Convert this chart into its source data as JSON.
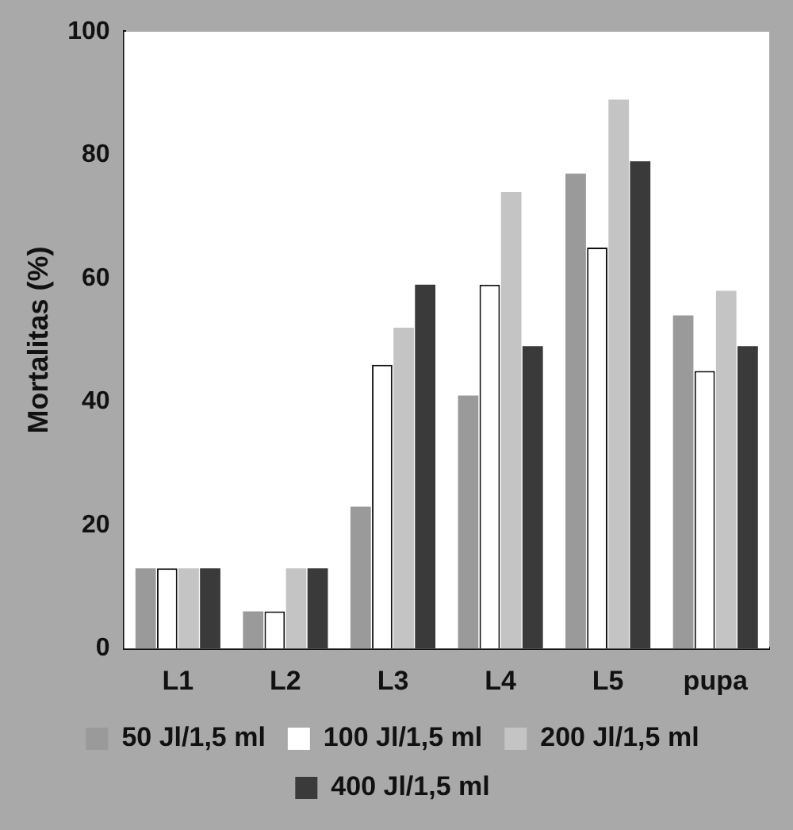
{
  "chart_data": {
    "type": "bar",
    "ylabel": "Mortalitas (%)",
    "categories": [
      "L1",
      "L2",
      "L3",
      "L4",
      "L5",
      "pupa"
    ],
    "series": [
      {
        "name": "50 Jl/1,5 ml",
        "color": "#9a9a9a",
        "values": [
          13,
          6,
          23,
          41,
          77,
          54
        ]
      },
      {
        "name": "100 Jl/1,5 ml",
        "color": "#ffffff",
        "values": [
          13,
          6,
          46,
          59,
          65,
          45
        ]
      },
      {
        "name": "200 Jl/1,5 ml",
        "color": "#c4c4c4",
        "values": [
          13,
          13,
          52,
          74,
          89,
          58
        ]
      },
      {
        "name": "400 Jl/1,5 ml",
        "color": "#3a3a3a",
        "values": [
          13,
          13,
          59,
          49,
          79,
          49
        ]
      }
    ],
    "ylim": [
      0,
      100
    ],
    "yticks": [
      0,
      20,
      40,
      60,
      80,
      100
    ],
    "grid": false,
    "legend": "bottom"
  }
}
